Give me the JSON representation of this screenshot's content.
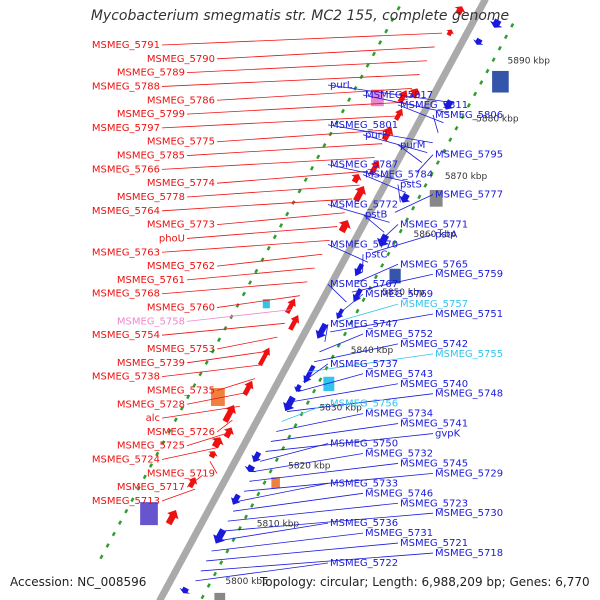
{
  "title": "Mycobacterium smegmatis str. MC2 155, complete genome",
  "accession": "Accession: NC_008596",
  "topology": "Topology: circular; Length: 6,988,209 bp; Genes: 6,770",
  "colors": {
    "forward_label": "#ee1111",
    "reverse_label": "#1a1adc",
    "highlight_pink": "#ee88cc",
    "highlight_cyan": "#33c4ee",
    "backbone": "#aaaaaa",
    "tick": "#2e9e2e"
  },
  "scale_labels": [
    "5800 kbp",
    "5810 kbp",
    "5820 kbp",
    "5830 kbp",
    "5840 kbp",
    "5850 kbp",
    "5860 kbp",
    "5870 kbp",
    "5880 kbp",
    "5890 kbp"
  ],
  "left_labels": [
    {
      "text": "MSMEG_5791",
      "color": "red"
    },
    {
      "text": "MSMEG_5790",
      "color": "red"
    },
    {
      "text": "MSMEG_5789",
      "color": "red"
    },
    {
      "text": "MSMEG_5788",
      "color": "red"
    },
    {
      "text": "MSMEG_5786",
      "color": "red"
    },
    {
      "text": "MSMEG_5799",
      "color": "red"
    },
    {
      "text": "MSMEG_5797",
      "color": "red"
    },
    {
      "text": "MSMEG_5775",
      "color": "red"
    },
    {
      "text": "MSMEG_5785",
      "color": "red"
    },
    {
      "text": "MSMEG_5766",
      "color": "red"
    },
    {
      "text": "MSMEG_5774",
      "color": "red"
    },
    {
      "text": "MSMEG_5778",
      "color": "red"
    },
    {
      "text": "MSMEG_5764",
      "color": "red"
    },
    {
      "text": "MSMEG_5773",
      "color": "red"
    },
    {
      "text": "phoU",
      "color": "red"
    },
    {
      "text": "MSMEG_5763",
      "color": "red"
    },
    {
      "text": "MSMEG_5762",
      "color": "red"
    },
    {
      "text": "MSMEG_5761",
      "color": "red"
    },
    {
      "text": "MSMEG_5768",
      "color": "red"
    },
    {
      "text": "MSMEG_5760",
      "color": "red"
    },
    {
      "text": "MSMEG_5758",
      "color": "pink"
    },
    {
      "text": "MSMEG_5754",
      "color": "red"
    },
    {
      "text": "MSMEG_5753",
      "color": "red"
    },
    {
      "text": "MSMEG_5739",
      "color": "red"
    },
    {
      "text": "MSMEG_5738",
      "color": "red"
    },
    {
      "text": "MSMEG_5735",
      "color": "red"
    },
    {
      "text": "MSMEG_5728",
      "color": "red"
    },
    {
      "text": "alc",
      "color": "red"
    },
    {
      "text": "MSMEG_5726",
      "color": "red"
    },
    {
      "text": "MSMEG_5725",
      "color": "red"
    },
    {
      "text": "MSMEG_5724",
      "color": "red"
    },
    {
      "text": "MSMEG_5719",
      "color": "red"
    },
    {
      "text": "MSMEG_5717",
      "color": "red"
    },
    {
      "text": "MSMEG_5713",
      "color": "red"
    }
  ],
  "right_labels": [
    {
      "text": "purL",
      "color": "blue"
    },
    {
      "text": "MSMEG_5817",
      "color": "blue"
    },
    {
      "text": "MSMEG_5811",
      "color": "blue"
    },
    {
      "text": "MSMEG_5806",
      "color": "blue"
    },
    {
      "text": "MSMEG_5801",
      "color": "blue"
    },
    {
      "text": "purF",
      "color": "blue"
    },
    {
      "text": "purM",
      "color": "blue"
    },
    {
      "text": "MSMEG_5795",
      "color": "blue"
    },
    {
      "text": "MSMEG_5787",
      "color": "blue"
    },
    {
      "text": "MSMEG_5784",
      "color": "blue"
    },
    {
      "text": "pstS",
      "color": "blue"
    },
    {
      "text": "MSMEG_5777",
      "color": "blue"
    },
    {
      "text": "MSMEG_5772",
      "color": "blue"
    },
    {
      "text": "pstB",
      "color": "blue"
    },
    {
      "text": "MSMEG_5771",
      "color": "blue"
    },
    {
      "text": "pstA",
      "color": "blue"
    },
    {
      "text": "MSMEG_5770",
      "color": "blue"
    },
    {
      "text": "pstC",
      "color": "blue"
    },
    {
      "text": "MSMEG_5765",
      "color": "blue"
    },
    {
      "text": "MSMEG_5759",
      "color": "blue"
    },
    {
      "text": "MSMEG_5767",
      "color": "blue"
    },
    {
      "text": "MSMEG_5769",
      "color": "blue"
    },
    {
      "text": "MSMEG_5757",
      "color": "cyan"
    },
    {
      "text": "MSMEG_5751",
      "color": "blue"
    },
    {
      "text": "MSMEG_5747",
      "color": "blue"
    },
    {
      "text": "MSMEG_5752",
      "color": "blue"
    },
    {
      "text": "MSMEG_5742",
      "color": "blue"
    },
    {
      "text": "MSMEG_5755",
      "color": "cyan"
    },
    {
      "text": "MSMEG_5737",
      "color": "blue"
    },
    {
      "text": "MSMEG_5743",
      "color": "blue"
    },
    {
      "text": "MSMEG_5740",
      "color": "blue"
    },
    {
      "text": "MSMEG_5748",
      "color": "blue"
    },
    {
      "text": "MSMEG_5756",
      "color": "cyan"
    },
    {
      "text": "MSMEG_5734",
      "color": "blue"
    },
    {
      "text": "MSMEG_5741",
      "color": "blue"
    },
    {
      "text": "gvpK",
      "color": "blue"
    },
    {
      "text": "MSMEG_5750",
      "color": "blue"
    },
    {
      "text": "MSMEG_5732",
      "color": "blue"
    },
    {
      "text": "MSMEG_5745",
      "color": "blue"
    },
    {
      "text": "MSMEG_5729",
      "color": "blue"
    },
    {
      "text": "MSMEG_5733",
      "color": "blue"
    },
    {
      "text": "MSMEG_5746",
      "color": "blue"
    },
    {
      "text": "MSMEG_5723",
      "color": "blue"
    },
    {
      "text": "MSMEG_5730",
      "color": "blue"
    },
    {
      "text": "MSMEG_5736",
      "color": "blue"
    },
    {
      "text": "MSMEG_5731",
      "color": "blue"
    },
    {
      "text": "MSMEG_5721",
      "color": "blue"
    },
    {
      "text": "MSMEG_5718",
      "color": "blue"
    },
    {
      "text": "MSMEG_5722",
      "color": "blue"
    }
  ]
}
